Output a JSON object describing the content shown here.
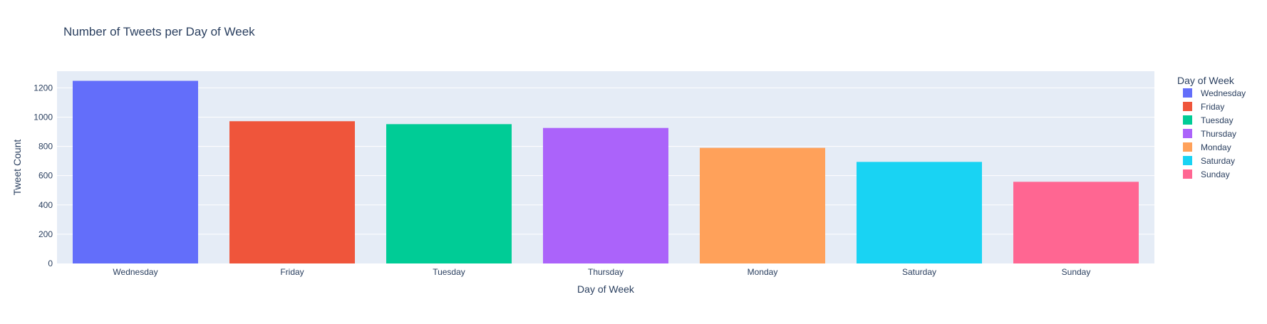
{
  "chart_data": {
    "type": "bar",
    "title": "Number of Tweets per Day of Week",
    "xlabel": "Day of Week",
    "ylabel": "Tweet Count",
    "categories": [
      "Wednesday",
      "Friday",
      "Tuesday",
      "Thursday",
      "Monday",
      "Saturday",
      "Sunday"
    ],
    "values": [
      1248,
      972,
      952,
      926,
      790,
      694,
      558
    ],
    "colors": [
      "#636efa",
      "#EF553B",
      "#00cc96",
      "#ab63fa",
      "#FFA15A",
      "#19d3f3",
      "#FF6692"
    ],
    "ylim": [
      0,
      1313.7
    ],
    "yticks": [
      0,
      200,
      400,
      600,
      800,
      1000,
      1200
    ],
    "grid": true,
    "legend": {
      "title": "Day of Week",
      "placement": "right",
      "entries": [
        "Wednesday",
        "Friday",
        "Tuesday",
        "Thursday",
        "Monday",
        "Saturday",
        "Sunday"
      ]
    },
    "plot_background": "#E5ECF6"
  }
}
